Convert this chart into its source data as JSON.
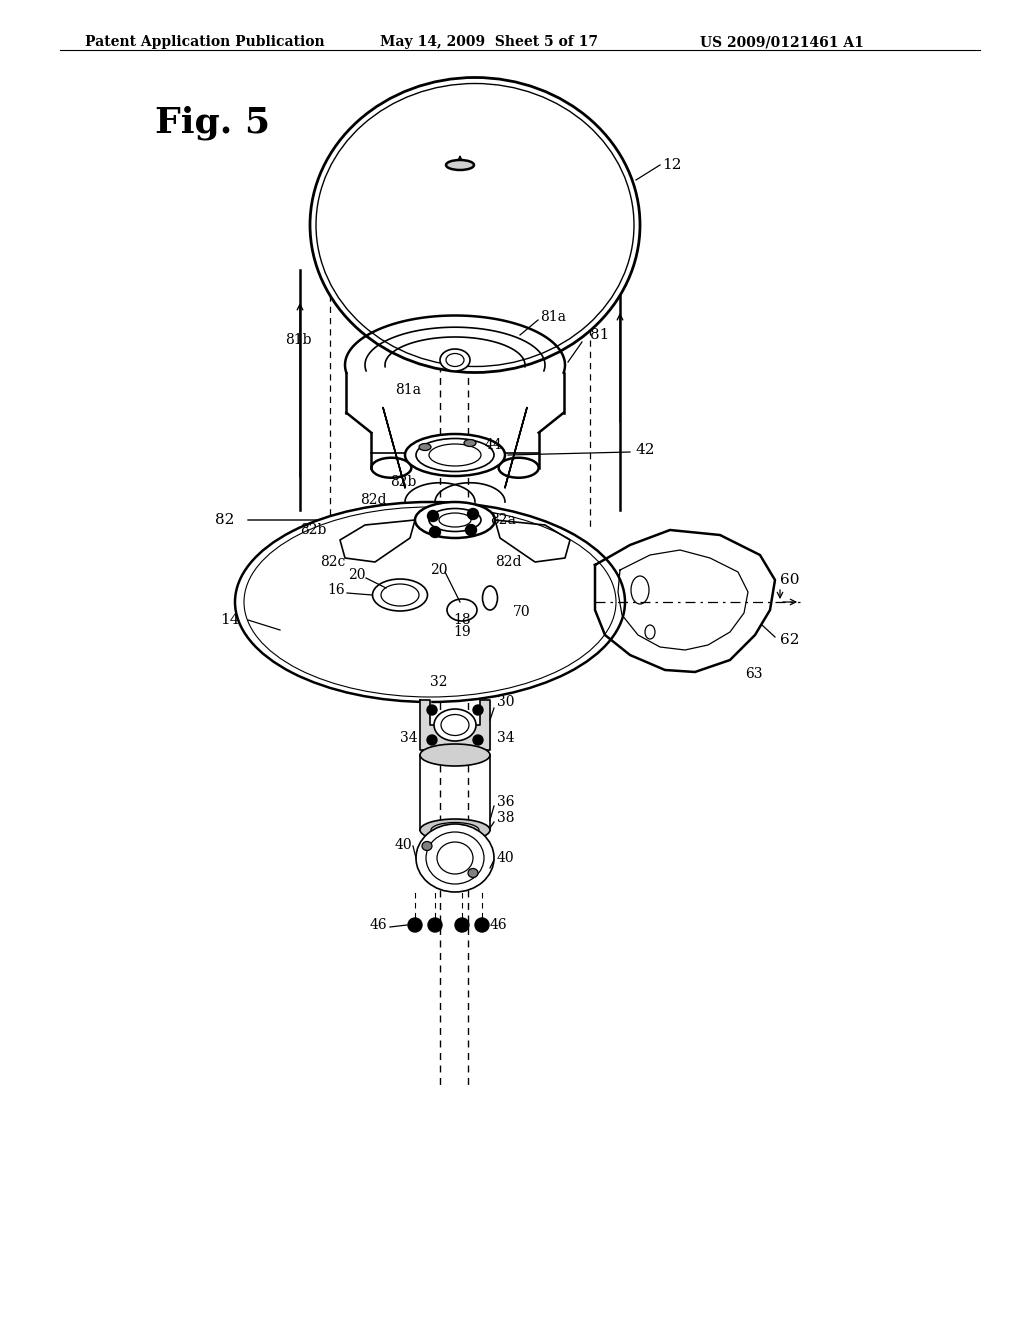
{
  "bg_color": "#ffffff",
  "line_color": "#000000",
  "header_text": "Patent Application Publication",
  "header_date": "May 14, 2009  Sheet 5 of 17",
  "header_patent": "US 2009/0121461 A1",
  "fig_label": "Fig. 5"
}
